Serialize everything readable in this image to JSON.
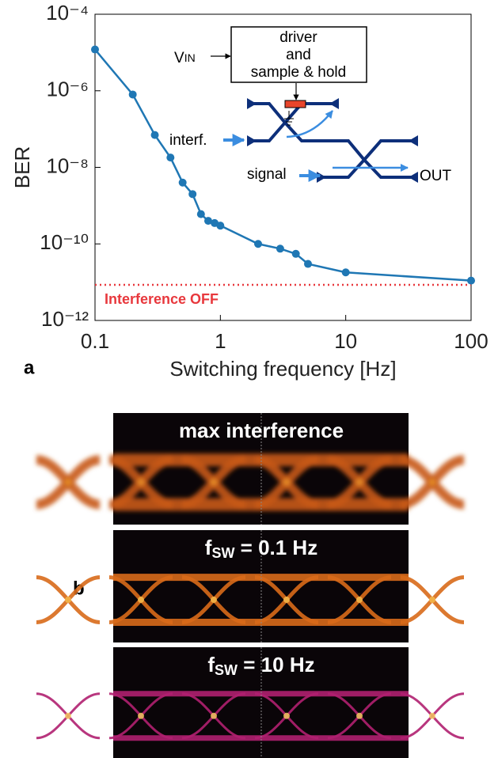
{
  "chart_data": {
    "type": "line",
    "xlabel": "Switching frequency [Hz]",
    "ylabel": "BER",
    "x": [
      0.1,
      0.2,
      0.3,
      0.4,
      0.5,
      0.6,
      0.7,
      0.8,
      0.9,
      1,
      2,
      3,
      4,
      5,
      10,
      100
    ],
    "values": [
      1.2e-05,
      8e-07,
      7e-08,
      1.8e-08,
      4e-09,
      2e-09,
      6e-10,
      4e-10,
      3.5e-10,
      3e-10,
      1e-10,
      7.5e-11,
      5.5e-11,
      3e-11,
      1.8e-11,
      1.1e-11
    ],
    "color": "#1f77b4",
    "xscale": "log",
    "yscale": "log",
    "xlim": [
      0.1,
      100
    ],
    "xticks": [
      0.1,
      1,
      10,
      100
    ],
    "ylim": [
      1e-12,
      0.0001
    ],
    "yticks": [
      {
        "value": 1e-12,
        "label": "10⁻¹²"
      },
      {
        "value": 1e-10,
        "label": "10⁻¹⁰"
      },
      {
        "value": 1e-08,
        "label": "10⁻⁸"
      },
      {
        "value": 1e-06,
        "label": "10⁻⁶"
      },
      {
        "value": 0.0001,
        "label": "10⁻⁴"
      }
    ],
    "reference_line": {
      "value": 8.5e-12,
      "label": "Interference OFF",
      "color": "#e8383d"
    },
    "inset": {
      "vin": "V",
      "vin_sub": "IN",
      "box": [
        "driver",
        "and",
        "sample & hold"
      ],
      "interf": "interf.",
      "signal": "signal",
      "out": "OUT"
    }
  },
  "panel_labels": [
    "a",
    "b"
  ],
  "eye_diagrams": [
    {
      "text": "max interference"
    },
    {
      "symbol": "f",
      "subscript": "SW",
      "text": " = 0.1 Hz"
    },
    {
      "symbol": "f",
      "subscript": "SW",
      "text": " = 10 Hz"
    }
  ]
}
